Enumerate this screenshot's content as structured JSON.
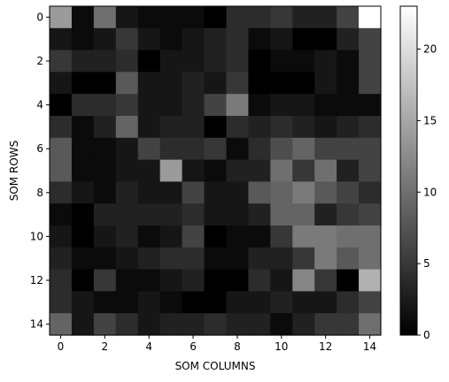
{
  "chart_data": {
    "type": "heatmap",
    "title": "",
    "xlabel": "SOM COLUMNS",
    "ylabel": "SOM ROWS",
    "colormap": "gray",
    "vmin": 0,
    "vmax": 23,
    "colorbar_ticks": [
      0,
      5,
      10,
      15,
      20
    ],
    "x_ticks": [
      0,
      2,
      4,
      6,
      8,
      10,
      12,
      14
    ],
    "y_ticks": [
      0,
      2,
      4,
      6,
      8,
      10,
      12,
      14
    ],
    "x_tick_labels": [
      "0",
      "2",
      "4",
      "6",
      "8",
      "10",
      "12",
      "14"
    ],
    "y_tick_labels": [
      "0",
      "2",
      "4",
      "6",
      "8",
      "10",
      "12",
      "14"
    ],
    "colorbar_tick_labels": [
      "0",
      "5",
      "10",
      "15",
      "20"
    ],
    "rows": 15,
    "cols": 15,
    "values": [
      [
        14,
        1,
        10,
        2,
        1,
        1,
        1,
        0,
        4,
        4,
        5,
        3,
        3,
        6,
        23
      ],
      [
        2,
        1,
        2,
        5,
        2,
        1,
        2,
        3,
        4,
        1,
        2,
        0,
        0,
        3,
        6
      ],
      [
        5,
        3,
        3,
        4,
        0,
        2,
        2,
        3,
        4,
        0,
        1,
        1,
        2,
        1,
        6
      ],
      [
        2,
        0,
        0,
        8,
        2,
        2,
        3,
        2,
        5,
        0,
        0,
        0,
        2,
        1,
        6
      ],
      [
        0,
        4,
        4,
        5,
        2,
        2,
        3,
        6,
        11,
        1,
        2,
        2,
        1,
        1,
        1
      ],
      [
        4,
        1,
        3,
        9,
        2,
        3,
        3,
        0,
        4,
        3,
        4,
        3,
        2,
        3,
        4
      ],
      [
        8,
        1,
        1,
        2,
        6,
        4,
        4,
        5,
        1,
        4,
        7,
        9,
        6,
        6,
        6
      ],
      [
        8,
        1,
        1,
        2,
        2,
        14,
        2,
        1,
        3,
        3,
        10,
        5,
        10,
        3,
        6
      ],
      [
        4,
        2,
        1,
        3,
        2,
        2,
        6,
        2,
        2,
        8,
        9,
        11,
        8,
        6,
        4
      ],
      [
        1,
        0,
        3,
        3,
        3,
        3,
        4,
        2,
        2,
        3,
        9,
        9,
        3,
        5,
        6
      ],
      [
        2,
        0,
        2,
        3,
        1,
        2,
        6,
        0,
        1,
        1,
        5,
        11,
        11,
        10,
        10
      ],
      [
        3,
        1,
        1,
        2,
        3,
        4,
        4,
        1,
        1,
        3,
        3,
        5,
        11,
        8,
        10
      ],
      [
        4,
        0,
        5,
        1,
        1,
        2,
        3,
        0,
        0,
        4,
        2,
        12,
        5,
        0,
        16
      ],
      [
        4,
        2,
        1,
        1,
        2,
        1,
        0,
        0,
        2,
        2,
        3,
        2,
        2,
        4,
        6
      ],
      [
        9,
        2,
        6,
        4,
        2,
        3,
        3,
        4,
        3,
        3,
        1,
        3,
        5,
        5,
        10
      ]
    ]
  }
}
